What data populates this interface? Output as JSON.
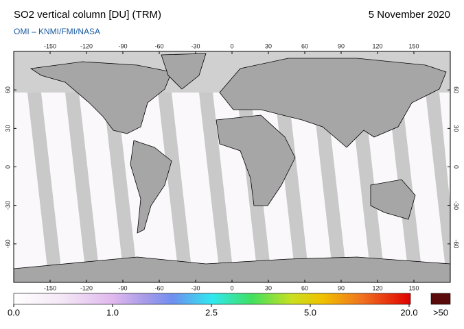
{
  "header": {
    "title": "SO2 vertical column [DU] (TRM)",
    "date": "5 November 2020",
    "credit": "OMI  –  KNMI/FMI/NASA"
  },
  "map": {
    "xlim": [
      -180,
      180
    ],
    "ylim": [
      -90,
      90
    ],
    "xticks": [
      -150,
      -120,
      -90,
      -60,
      -30,
      0,
      30,
      60,
      90,
      120,
      150
    ],
    "yticks": [
      60,
      30,
      0,
      -30,
      -60
    ]
  },
  "colorbar": {
    "ticks": [
      {
        "value": 0,
        "label": "0.0"
      },
      {
        "value": 1,
        "label": "1.0"
      },
      {
        "value": 2.5,
        "label": "2.5"
      },
      {
        "value": 5,
        "label": "5.0"
      },
      {
        "value": 20,
        "label": "20.0"
      }
    ],
    "overflow_label": ">50"
  }
}
